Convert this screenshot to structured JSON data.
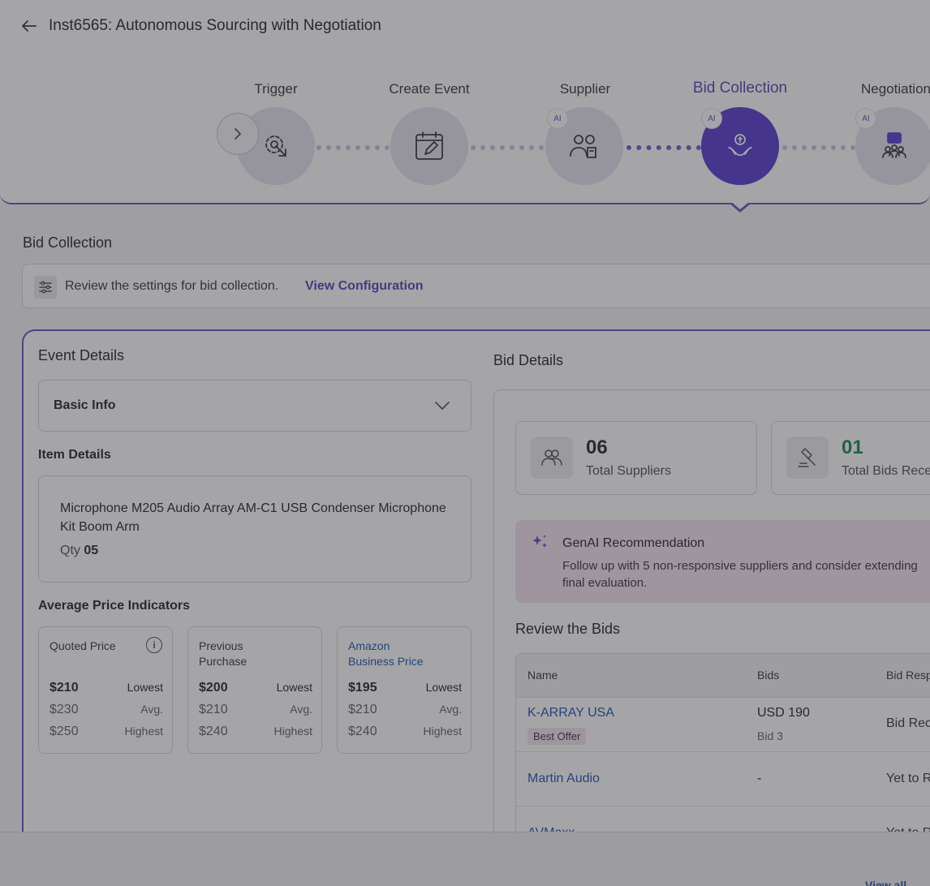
{
  "header": {
    "title": "Inst6565: Autonomous Sourcing with Negotiation"
  },
  "steps": [
    {
      "label": "Trigger",
      "ai": ""
    },
    {
      "label": "Create Event",
      "ai": ""
    },
    {
      "label": "Supplier",
      "ai": "AI"
    },
    {
      "label": "Bid Collection",
      "ai": "AI"
    },
    {
      "label": "Negotiation",
      "ai": "AI"
    }
  ],
  "section": {
    "title": "Bid Collection",
    "config_text": "Review the settings for bid collection.",
    "config_link": "View Configuration"
  },
  "event": {
    "title": "Event Details",
    "basic_info": "Basic Info",
    "item_details_title": "Item Details",
    "item_name": "Microphone M205 Audio Array AM-C1 USB Condenser Microphone Kit Boom Arm",
    "qty_label": "Qty",
    "qty_value": "05",
    "avg_title": "Average Price Indicators",
    "price_cards": [
      {
        "title": "Quoted Price",
        "rows": [
          {
            "value": "$210",
            "label": "Lowest"
          },
          {
            "value": "$230",
            "label": "Avg."
          },
          {
            "value": "$250",
            "label": "Highest"
          }
        ]
      },
      {
        "title": "Previous Purchase",
        "rows": [
          {
            "value": "$200",
            "label": "Lowest"
          },
          {
            "value": "$210",
            "label": "Avg."
          },
          {
            "value": "$240",
            "label": "Highest"
          }
        ]
      },
      {
        "title": "Amazon Business Price",
        "rows": [
          {
            "value": "$195",
            "label": "Lowest"
          },
          {
            "value": "$210",
            "label": "Avg."
          },
          {
            "value": "$240",
            "label": "Highest"
          }
        ]
      }
    ]
  },
  "bids": {
    "title": "Bid Details",
    "stats": [
      {
        "value": "06",
        "label": "Total Suppliers",
        "color": "#2a2a31"
      },
      {
        "value": "01",
        "label": "Total Bids Rece",
        "color": "#1d8a55"
      }
    ],
    "genai_title": "GenAI Recommendation",
    "genai_line1": "Follow up with 5 non-responsive suppliers and consider extending",
    "genai_line2": "final evaluation.",
    "review_title": "Review the Bids",
    "columns": [
      "Name",
      "Bids",
      "Bid Resp"
    ],
    "rows": [
      {
        "name": "K-ARRAY USA",
        "bid": "USD 190",
        "bid_sub": "Bid 3",
        "response": "Bid Rec",
        "badge": "Best Offer"
      },
      {
        "name": "Martin Audio",
        "bid": "-",
        "bid_sub": "",
        "response": "Yet to R",
        "badge": ""
      },
      {
        "name": "AVMaxx",
        "bid": "-",
        "bid_sub": "",
        "response": "Yet to R",
        "badge": ""
      }
    ]
  },
  "footer": {
    "link": "View all"
  },
  "colors": {
    "accent": "#5b3fd0",
    "link": "#2456b8",
    "success": "#1d8a55",
    "genai_bg": "#f3e3f2"
  }
}
